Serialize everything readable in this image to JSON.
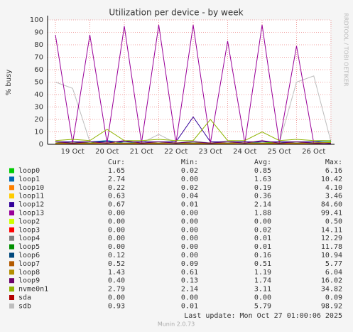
{
  "chart_data": {
    "type": "line",
    "title": "Utilization per device - by week",
    "y_label": "% busy",
    "watermark": "RRDTOOL / TOBI OETIKER",
    "categories": [
      null,
      "19 Oct",
      null,
      "20 Oct",
      null,
      "21 Oct",
      null,
      "22 Oct",
      null,
      "23 Oct",
      null,
      "24 Oct",
      null,
      "25 Oct",
      null,
      "26 Oct",
      null
    ],
    "ylim": [
      0,
      100
    ],
    "yticks": [
      0,
      10,
      20,
      30,
      40,
      50,
      60,
      70,
      80,
      90,
      100
    ],
    "grid": true,
    "legend_headers": [
      "Cur:",
      "Min:",
      "Avg:",
      "Max:"
    ],
    "series": [
      {
        "name": "loop0",
        "color": "#00cc00",
        "cur": "1.65",
        "min": "0.02",
        "avg": "0.85",
        "max": "6.16",
        "values": [
          1,
          2,
          1,
          3,
          1,
          1,
          2,
          1,
          1,
          1,
          2,
          1,
          1,
          2,
          1,
          1,
          2
        ]
      },
      {
        "name": "loop1",
        "color": "#0066b3",
        "cur": "2.74",
        "min": "0.00",
        "avg": "1.63",
        "max": "10.42",
        "values": [
          2,
          1,
          2,
          3,
          1,
          2,
          2,
          1,
          2,
          1,
          2,
          1,
          2,
          2,
          1,
          2,
          3
        ]
      },
      {
        "name": "loop10",
        "color": "#ff8000",
        "cur": "0.22",
        "min": "0.02",
        "avg": "0.19",
        "max": "4.10",
        "values": [
          0.2,
          0.2,
          0.2,
          0.2,
          0.2,
          0.2,
          0.2,
          0.2,
          0.2,
          0.2,
          0.2,
          0.2,
          0.2,
          0.2,
          0.2,
          0.2,
          0.2
        ]
      },
      {
        "name": "loop11",
        "color": "#ffcc00",
        "cur": "0.63",
        "min": "0.04",
        "avg": "0.36",
        "max": "3.46",
        "values": [
          0.4,
          0.3,
          0.4,
          0.3,
          0.4,
          0.3,
          0.4,
          0.3,
          0.4,
          0.3,
          0.4,
          0.3,
          0.4,
          0.3,
          0.4,
          0.3,
          0.6
        ]
      },
      {
        "name": "loop12",
        "color": "#330099",
        "cur": "0.67",
        "min": "0.01",
        "avg": "2.14",
        "max": "84.60",
        "values": [
          2,
          2,
          2,
          2,
          2,
          2,
          2,
          2,
          22,
          2,
          2,
          2,
          2,
          2,
          2,
          2,
          1
        ]
      },
      {
        "name": "loop13",
        "color": "#990099",
        "cur": "0.00",
        "min": "0.00",
        "avg": "1.88",
        "max": "99.41",
        "values": [
          88,
          1,
          88,
          1,
          95,
          1,
          96,
          1,
          96,
          1,
          83,
          1,
          96,
          1,
          79,
          1,
          0
        ]
      },
      {
        "name": "loop2",
        "color": "#ccff00",
        "cur": "0.00",
        "min": "0.00",
        "avg": "0.00",
        "max": "0.50",
        "values": [
          0,
          0,
          0,
          0,
          0,
          0,
          0,
          0,
          0,
          0,
          0,
          0,
          0,
          0,
          0,
          0,
          0
        ]
      },
      {
        "name": "loop3",
        "color": "#ff0000",
        "cur": "0.00",
        "min": "0.00",
        "avg": "0.02",
        "max": "14.11",
        "values": [
          0,
          0,
          0,
          0,
          0,
          0,
          0,
          0,
          0,
          0,
          0,
          0,
          0,
          0,
          0,
          0,
          0
        ]
      },
      {
        "name": "loop4",
        "color": "#808080",
        "cur": "0.00",
        "min": "0.00",
        "avg": "0.01",
        "max": "12.29",
        "values": [
          0,
          0,
          0,
          0,
          0,
          0,
          0,
          0,
          0,
          0,
          0,
          0,
          0,
          0,
          0,
          0,
          0
        ]
      },
      {
        "name": "loop5",
        "color": "#008f00",
        "cur": "0.00",
        "min": "0.00",
        "avg": "0.01",
        "max": "11.78",
        "values": [
          0,
          0,
          0,
          0,
          0,
          0,
          0,
          0,
          0,
          0,
          0,
          0,
          0,
          0,
          0,
          0,
          0
        ]
      },
      {
        "name": "loop6",
        "color": "#00487d",
        "cur": "0.12",
        "min": "0.00",
        "avg": "0.16",
        "max": "10.94",
        "values": [
          0.2,
          0.1,
          0.2,
          0.1,
          0.2,
          0.1,
          0.2,
          0.1,
          0.2,
          0.1,
          0.2,
          0.1,
          0.2,
          0.1,
          0.2,
          0.1,
          0.1
        ]
      },
      {
        "name": "loop7",
        "color": "#b35a00",
        "cur": "0.52",
        "min": "0.09",
        "avg": "0.51",
        "max": "5.77",
        "values": [
          0.5,
          0.6,
          0.5,
          0.4,
          0.5,
          0.6,
          0.5,
          0.4,
          0.5,
          0.6,
          0.5,
          0.4,
          0.5,
          0.6,
          0.5,
          0.4,
          0.5
        ]
      },
      {
        "name": "loop8",
        "color": "#b38f00",
        "cur": "1.43",
        "min": "0.61",
        "avg": "1.19",
        "max": "6.04",
        "values": [
          1,
          1.2,
          1,
          1.3,
          1,
          1.2,
          1,
          1.3,
          1,
          1.2,
          1,
          1.3,
          1,
          1.2,
          1,
          1.3,
          1.4
        ]
      },
      {
        "name": "loop9",
        "color": "#6b006b",
        "cur": "0.40",
        "min": "0.13",
        "avg": "1.74",
        "max": "16.02",
        "values": [
          2,
          1,
          2,
          1,
          3,
          1,
          2,
          1,
          2,
          1,
          2,
          1,
          3,
          1,
          2,
          1,
          0.4
        ]
      },
      {
        "name": "nvme0n1",
        "color": "#8fb300",
        "cur": "2.79",
        "min": "2.14",
        "avg": "3.11",
        "max": "34.82",
        "values": [
          3,
          4,
          3,
          12,
          3,
          3,
          4,
          3,
          3,
          20,
          3,
          3,
          10,
          3,
          4,
          3,
          3
        ]
      },
      {
        "name": "sda",
        "color": "#b30000",
        "cur": "0.00",
        "min": "0.00",
        "avg": "0.00",
        "max": "0.09",
        "values": [
          0,
          0,
          0,
          0,
          0,
          0,
          0,
          0,
          0,
          0,
          0,
          0,
          0,
          0,
          0,
          0,
          0
        ]
      },
      {
        "name": "sdb",
        "color": "#bebebe",
        "cur": "0.93",
        "min": "0.01",
        "avg": "5.79",
        "max": "98.92",
        "values": [
          50,
          45,
          2,
          1,
          3,
          1,
          8,
          1,
          3,
          1,
          3,
          1,
          2,
          1,
          50,
          55,
          2
        ]
      }
    ],
    "last_update": "Last update: Mon Oct 27 01:00:06 2025",
    "footer": "Munin 2.0.73"
  }
}
